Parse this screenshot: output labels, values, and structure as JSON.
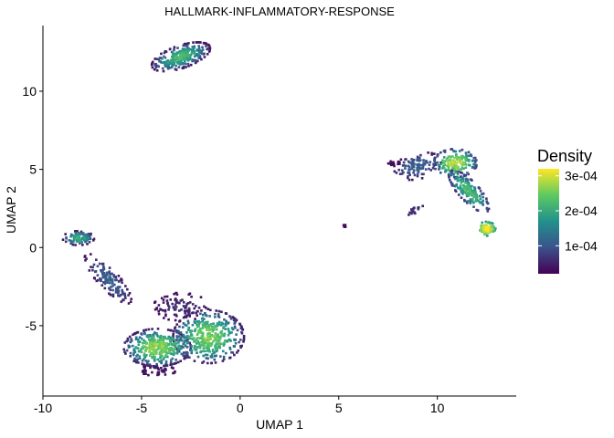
{
  "chart_data": {
    "type": "scatter",
    "title": "HALLMARK-INFLAMMATORY-RESPONSE",
    "xlabel": "UMAP 1",
    "ylabel": "UMAP 2",
    "xlim": [
      -10,
      14
    ],
    "ylim": [
      -9.5,
      14.2
    ],
    "x_ticks": [
      -10,
      -5,
      0,
      5,
      10
    ],
    "y_ticks": [
      -5,
      0,
      5,
      10
    ],
    "grid": false,
    "point_shape": "square",
    "color_scale": {
      "name": "viridis",
      "stops": [
        "#440154",
        "#3b528b",
        "#21918c",
        "#5ec962",
        "#fde725"
      ],
      "range": [
        2e-05,
        0.00032
      ]
    },
    "legend": {
      "title": "Density",
      "position": "right",
      "breaks": [
        0.0001,
        0.0002,
        0.0003
      ],
      "labels": [
        "1e-04",
        "2e-04",
        "3e-04"
      ]
    },
    "clusters": [
      {
        "cx": -3.0,
        "cy": 12.2,
        "rx": 1.6,
        "ry": 0.7,
        "angle_deg": 25,
        "n": 280,
        "density_center": 0.00021,
        "density_edge": 4e-05
      },
      {
        "cx": -8.2,
        "cy": 0.6,
        "rx": 0.8,
        "ry": 0.45,
        "angle_deg": 0,
        "n": 90,
        "density_center": 0.0002,
        "density_edge": 4e-05
      },
      {
        "cx": -6.7,
        "cy": -2.0,
        "rx": 1.9,
        "ry": 0.55,
        "angle_deg": -55,
        "n": 140,
        "density_center": 0.00011,
        "density_edge": 4e-05
      },
      {
        "cx": -4.2,
        "cy": -6.4,
        "rx": 1.7,
        "ry": 1.2,
        "angle_deg": 0,
        "n": 380,
        "density_center": 0.00026,
        "density_edge": 5e-05
      },
      {
        "cx": -1.6,
        "cy": -5.7,
        "rx": 1.8,
        "ry": 1.7,
        "angle_deg": 0,
        "n": 430,
        "density_center": 0.00025,
        "density_edge": 5e-05
      },
      {
        "cx": -3.0,
        "cy": -3.8,
        "rx": 1.4,
        "ry": 0.9,
        "angle_deg": 0,
        "n": 90,
        "density_center": 6e-05,
        "density_edge": 3e-05
      },
      {
        "cx": -4.2,
        "cy": -7.9,
        "rx": 0.9,
        "ry": 0.4,
        "angle_deg": 0,
        "n": 40,
        "density_center": 4e-05,
        "density_edge": 3e-05
      },
      {
        "cx": 9.0,
        "cy": 5.2,
        "rx": 1.3,
        "ry": 0.8,
        "angle_deg": 20,
        "n": 110,
        "density_center": 0.00011,
        "density_edge": 4e-05
      },
      {
        "cx": 10.9,
        "cy": 5.4,
        "rx": 1.1,
        "ry": 0.9,
        "angle_deg": 0,
        "n": 160,
        "density_center": 0.00028,
        "density_edge": 8e-05
      },
      {
        "cx": 11.6,
        "cy": 3.6,
        "rx": 1.6,
        "ry": 0.55,
        "angle_deg": -55,
        "n": 170,
        "density_center": 0.00022,
        "density_edge": 7e-05
      },
      {
        "cx": 12.5,
        "cy": 1.2,
        "rx": 0.45,
        "ry": 0.45,
        "angle_deg": 0,
        "n": 70,
        "density_center": 0.00032,
        "density_edge": 0.00018
      },
      {
        "cx": 8.9,
        "cy": 2.4,
        "rx": 0.5,
        "ry": 0.22,
        "angle_deg": 35,
        "n": 18,
        "density_center": 7e-05,
        "density_edge": 4e-05
      },
      {
        "cx": 7.8,
        "cy": 5.4,
        "rx": 0.3,
        "ry": 0.18,
        "angle_deg": 0,
        "n": 14,
        "density_center": 3e-05,
        "density_edge": 3e-05
      },
      {
        "cx": 5.3,
        "cy": 1.4,
        "rx": 0.12,
        "ry": 0.08,
        "angle_deg": 0,
        "n": 8,
        "density_center": 3e-05,
        "density_edge": 3e-05
      }
    ]
  }
}
